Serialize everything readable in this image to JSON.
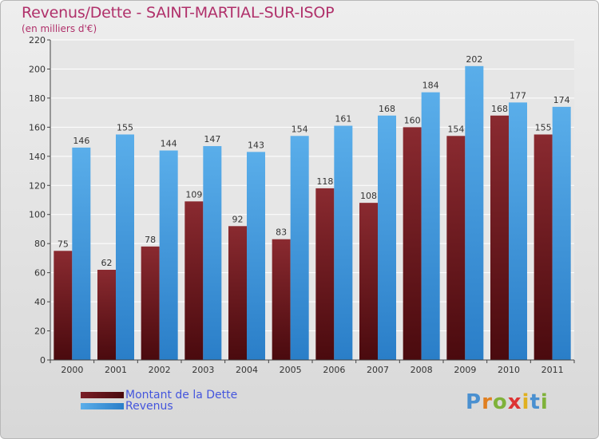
{
  "title": "Revenus/Dette - SAINT-MARTIAL-SUR-ISOP",
  "subtitle": "(en milliers d'€)",
  "logo": {
    "letters": [
      "P",
      "r",
      "o",
      "x",
      "i",
      "t",
      "i"
    ],
    "colors": [
      "#4a90d0",
      "#e07f20",
      "#7fb23a",
      "#d33",
      "#e0b020",
      "#4a90d0",
      "#7fb23a"
    ]
  },
  "chart_data": {
    "type": "bar",
    "categories": [
      "2000",
      "2001",
      "2002",
      "2003",
      "2004",
      "2005",
      "2006",
      "2007",
      "2008",
      "2009",
      "2010",
      "2011"
    ],
    "series": [
      {
        "name": "Montant de la Dette",
        "color": "#7a1f27",
        "values": [
          75,
          62,
          78,
          109,
          92,
          83,
          118,
          108,
          160,
          154,
          168,
          155
        ]
      },
      {
        "name": "Revenus",
        "color": "#4a9fe0",
        "values": [
          146,
          155,
          144,
          147,
          143,
          154,
          161,
          168,
          184,
          202,
          177,
          174
        ]
      }
    ],
    "ylim": [
      0,
      220
    ],
    "yticks": [
      0,
      20,
      40,
      60,
      80,
      100,
      120,
      140,
      160,
      180,
      200,
      220
    ],
    "grid": true,
    "legend": "bottom-left"
  }
}
